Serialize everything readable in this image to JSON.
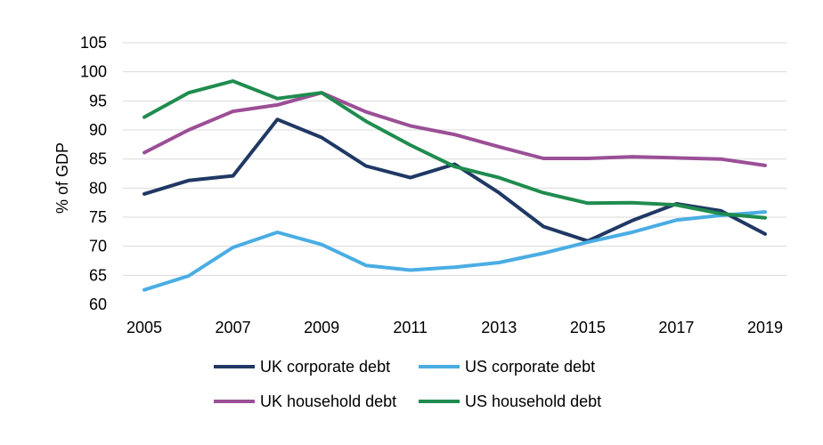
{
  "chart_data": {
    "type": "line",
    "title": "",
    "xlabel": "",
    "ylabel": "% of GDP",
    "ylim": [
      60,
      105
    ],
    "yticks": [
      "60",
      "65",
      "70",
      "75",
      "80",
      "85",
      "90",
      "95",
      "100",
      "105"
    ],
    "x": [
      2005,
      2006,
      2007,
      2008,
      2009,
      2010,
      2011,
      2012,
      2013,
      2014,
      2015,
      2016,
      2017,
      2018,
      2019
    ],
    "xticks": [
      "2005",
      "2007",
      "2009",
      "2011",
      "2013",
      "2015",
      "2017",
      "2019"
    ],
    "grid": true,
    "legend_position": "bottom",
    "series": [
      {
        "name": "UK corporate debt",
        "color": "#203864",
        "values": [
          79.0,
          81.3,
          82.1,
          91.8,
          88.7,
          83.8,
          81.8,
          84.1,
          79.2,
          73.4,
          70.9,
          74.4,
          77.3,
          76.1,
          72.1
        ]
      },
      {
        "name": "US corporate debt",
        "color": "#4aade3",
        "values": [
          62.5,
          64.9,
          69.8,
          72.4,
          70.3,
          66.7,
          65.9,
          66.4,
          67.2,
          68.8,
          70.7,
          72.4,
          74.5,
          75.3,
          75.9
        ]
      },
      {
        "name": "UK household debt",
        "color": "#9b4f96",
        "values": [
          86.1,
          90.0,
          93.2,
          94.3,
          96.4,
          93.1,
          90.7,
          89.2,
          87.1,
          85.1,
          85.1,
          85.4,
          85.2,
          85.0,
          83.9
        ]
      },
      {
        "name": "US household debt",
        "color": "#1f8c4e",
        "values": [
          92.2,
          96.4,
          98.4,
          95.4,
          96.4,
          91.5,
          87.4,
          83.7,
          81.8,
          79.2,
          77.4,
          77.5,
          77.1,
          75.6,
          74.9
        ]
      }
    ]
  }
}
